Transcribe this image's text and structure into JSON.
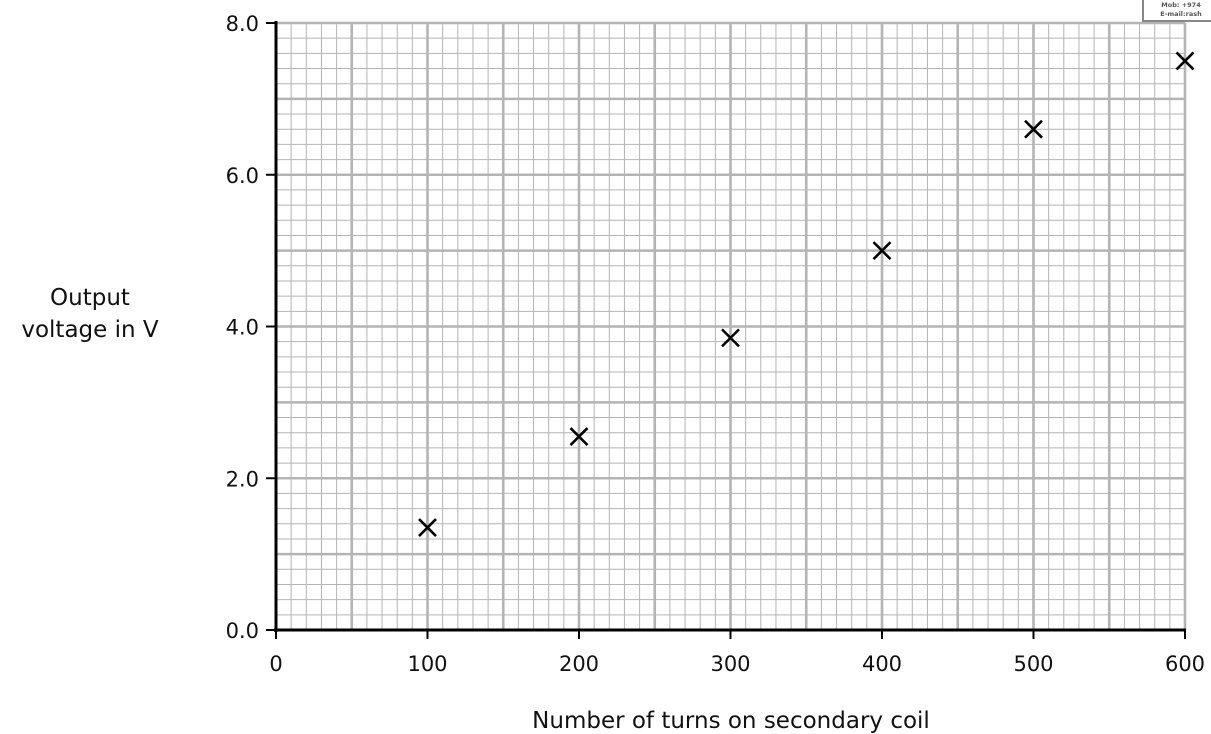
{
  "chart_data": {
    "type": "scatter",
    "title": "",
    "xlabel": "Number of turns on secondary coil",
    "ylabel_lines": [
      "Output",
      "voltage in V"
    ],
    "xlim": [
      0,
      600
    ],
    "ylim": [
      0,
      8
    ],
    "x_ticks": [
      0,
      100,
      200,
      300,
      400,
      500,
      600
    ],
    "x_tick_labels": [
      "0",
      "100",
      "200",
      "300",
      "400",
      "500",
      "600"
    ],
    "y_ticks": [
      0,
      2,
      4,
      6,
      8
    ],
    "y_tick_labels": [
      "0.0",
      "2.0",
      "4.0",
      "6.0",
      "8.0"
    ],
    "grid": true,
    "grid_major_x": 50,
    "grid_major_y": 1,
    "grid_minor_x": 10,
    "grid_minor_y": 0.2,
    "marker": "cross",
    "points": [
      {
        "x": 100,
        "y": 1.35
      },
      {
        "x": 200,
        "y": 2.55
      },
      {
        "x": 300,
        "y": 3.85
      },
      {
        "x": 400,
        "y": 5.0
      },
      {
        "x": 500,
        "y": 6.6
      },
      {
        "x": 600,
        "y": 7.5
      }
    ],
    "colors": {
      "grid": "#b4b4b4",
      "axis": "#000000",
      "marker": "#000000"
    }
  },
  "stamp": {
    "line1": "Mob: +974",
    "line2": "E-mail:rash"
  }
}
